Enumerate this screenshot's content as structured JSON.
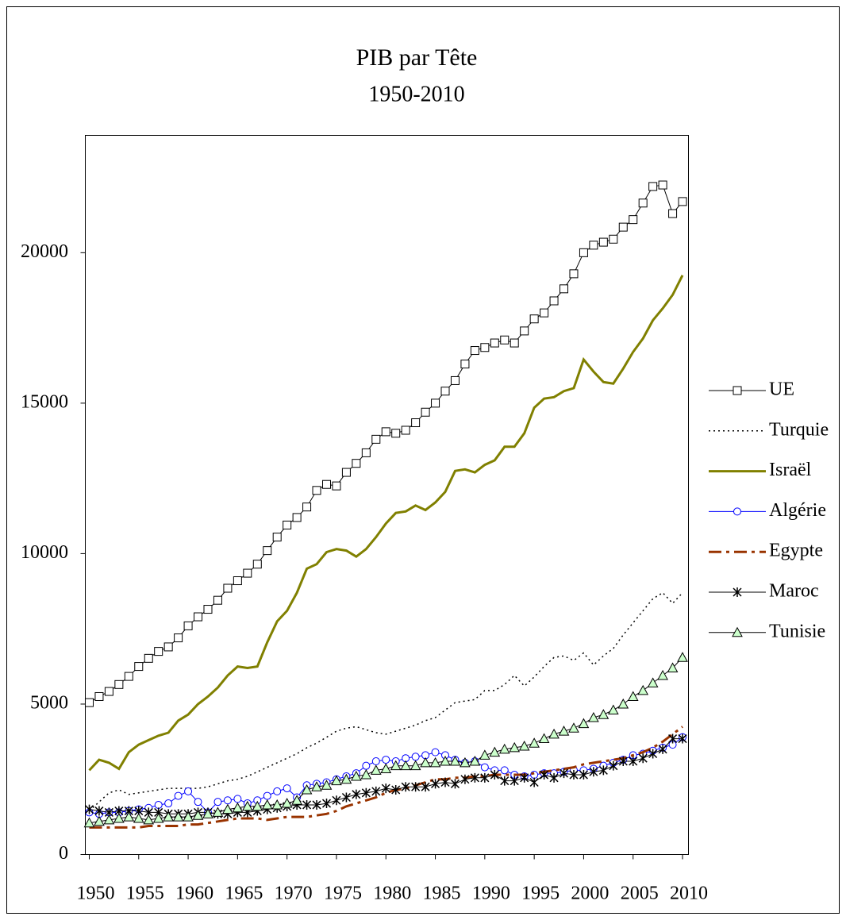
{
  "chart_data": {
    "type": "line",
    "title": "PIB par Tête",
    "subtitle": "1950-2010",
    "x": [
      1950,
      1951,
      1952,
      1953,
      1954,
      1955,
      1956,
      1957,
      1958,
      1959,
      1960,
      1961,
      1962,
      1963,
      1964,
      1965,
      1966,
      1967,
      1968,
      1969,
      1970,
      1971,
      1972,
      1973,
      1974,
      1975,
      1976,
      1977,
      1978,
      1979,
      1980,
      1981,
      1982,
      1983,
      1984,
      1985,
      1986,
      1987,
      1988,
      1989,
      1990,
      1991,
      1992,
      1993,
      1994,
      1995,
      1996,
      1997,
      1998,
      1999,
      2000,
      2001,
      2002,
      2003,
      2004,
      2005,
      2006,
      2007,
      2008,
      2009,
      2010
    ],
    "xlim": [
      1949.6,
      2010.6
    ],
    "xticks": [
      1950,
      1955,
      1960,
      1965,
      1970,
      1975,
      1980,
      1985,
      1990,
      1995,
      2000,
      2005,
      2010
    ],
    "ylim": [
      0,
      23900
    ],
    "yticks": [
      0,
      5000,
      10000,
      15000,
      20000
    ],
    "grid": false,
    "legend_position": "right",
    "series": [
      {
        "name": "UE",
        "color": "#000000",
        "line_style": "solid",
        "line_width": 1,
        "marker": "square",
        "marker_fill": "#ffffff",
        "values": [
          5050,
          5250,
          5420,
          5650,
          5920,
          6250,
          6520,
          6750,
          6900,
          7200,
          7600,
          7900,
          8150,
          8450,
          8850,
          9100,
          9350,
          9650,
          10100,
          10550,
          10950,
          11200,
          11550,
          12100,
          12300,
          12250,
          12700,
          13000,
          13350,
          13800,
          14050,
          14000,
          14100,
          14350,
          14700,
          15000,
          15400,
          15750,
          16300,
          16750,
          16850,
          17000,
          17100,
          17000,
          17400,
          17800,
          18000,
          18400,
          18800,
          19300,
          20000,
          20250,
          20350,
          20450,
          20850,
          21100,
          21650,
          22200,
          22250,
          21300,
          21700
        ]
      },
      {
        "name": "Turquie",
        "color": "#000000",
        "line_style": "dotted",
        "line_width": 1.5,
        "marker": "none",
        "values": [
          1450,
          1750,
          2050,
          2150,
          2000,
          2050,
          2100,
          2150,
          2200,
          2200,
          2200,
          2200,
          2250,
          2350,
          2450,
          2500,
          2600,
          2750,
          2900,
          3050,
          3200,
          3350,
          3550,
          3700,
          3900,
          4100,
          4200,
          4250,
          4150,
          4050,
          4000,
          4100,
          4200,
          4300,
          4450,
          4550,
          4800,
          5050,
          5100,
          5150,
          5450,
          5450,
          5650,
          5950,
          5600,
          5900,
          6250,
          6550,
          6600,
          6450,
          6700,
          6300,
          6600,
          6850,
          7300,
          7700,
          8100,
          8500,
          8700,
          8350,
          8700
        ]
      },
      {
        "name": "Israël",
        "color": "#808000",
        "line_style": "solid",
        "line_width": 3,
        "marker": "none",
        "values": [
          2800,
          3150,
          3050,
          2850,
          3400,
          3650,
          3800,
          3950,
          4050,
          4450,
          4650,
          5000,
          5250,
          5550,
          5950,
          6250,
          6200,
          6250,
          7050,
          7750,
          8100,
          8700,
          9500,
          9650,
          10050,
          10150,
          10100,
          9900,
          10150,
          10550,
          11000,
          11350,
          11400,
          11600,
          11450,
          11700,
          12050,
          12750,
          12800,
          12700,
          12950,
          13100,
          13550,
          13550,
          14000,
          14850,
          15150,
          15200,
          15400,
          15500,
          16450,
          16050,
          15700,
          15650,
          16150,
          16700,
          17150,
          17750,
          18150,
          18600,
          19250
        ]
      },
      {
        "name": "Algérie",
        "color": "#0000ff",
        "line_style": "solid",
        "line_width": 1,
        "marker": "circle",
        "marker_fill": "#ffffff",
        "values": [
          1400,
          1350,
          1400,
          1400,
          1450,
          1500,
          1550,
          1650,
          1700,
          1950,
          2100,
          1750,
          1400,
          1750,
          1800,
          1850,
          1700,
          1800,
          1950,
          2100,
          2200,
          1900,
          2300,
          2350,
          2400,
          2500,
          2600,
          2700,
          2950,
          3100,
          3150,
          3100,
          3200,
          3250,
          3300,
          3400,
          3300,
          3150,
          3050,
          3100,
          2900,
          2800,
          2800,
          2650,
          2600,
          2650,
          2700,
          2700,
          2750,
          2800,
          2800,
          2850,
          2950,
          3050,
          3150,
          3300,
          3350,
          3450,
          3550,
          3650,
          3900
        ]
      },
      {
        "name": "Egypte",
        "color": "#993300",
        "line_style": "dashdot",
        "line_width": 3,
        "marker": "none",
        "values": [
          900,
          900,
          900,
          900,
          900,
          900,
          950,
          950,
          950,
          950,
          1000,
          1000,
          1050,
          1100,
          1150,
          1200,
          1200,
          1200,
          1150,
          1200,
          1250,
          1250,
          1250,
          1300,
          1350,
          1450,
          1600,
          1700,
          1800,
          1900,
          2050,
          2150,
          2200,
          2300,
          2400,
          2500,
          2500,
          2550,
          2550,
          2600,
          2600,
          2650,
          2650,
          2650,
          2650,
          2700,
          2750,
          2800,
          2850,
          2900,
          3000,
          3050,
          3100,
          3150,
          3200,
          3300,
          3400,
          3550,
          3750,
          4000,
          4250
        ]
      },
      {
        "name": "Maroc",
        "color": "#000000",
        "line_style": "solid",
        "line_width": 1,
        "marker": "asterisk",
        "values": [
          1500,
          1450,
          1400,
          1450,
          1450,
          1450,
          1400,
          1400,
          1350,
          1350,
          1350,
          1400,
          1400,
          1350,
          1350,
          1400,
          1400,
          1450,
          1500,
          1550,
          1600,
          1650,
          1650,
          1650,
          1700,
          1800,
          1900,
          2000,
          2050,
          2100,
          2200,
          2150,
          2250,
          2250,
          2250,
          2350,
          2400,
          2350,
          2500,
          2550,
          2550,
          2650,
          2450,
          2450,
          2550,
          2400,
          2650,
          2550,
          2700,
          2650,
          2650,
          2750,
          2800,
          2950,
          3100,
          3100,
          3200,
          3350,
          3500,
          3850,
          3850
        ]
      },
      {
        "name": "Tunisie",
        "color": "#000000",
        "line_style": "solid",
        "line_width": 1,
        "marker": "triangle",
        "marker_fill": "#ccffcc",
        "values": [
          1050,
          1100,
          1150,
          1200,
          1250,
          1200,
          1150,
          1200,
          1250,
          1250,
          1250,
          1300,
          1350,
          1400,
          1500,
          1550,
          1600,
          1600,
          1650,
          1650,
          1700,
          1800,
          2150,
          2250,
          2300,
          2450,
          2500,
          2600,
          2650,
          2800,
          2850,
          2950,
          2950,
          2950,
          3050,
          3050,
          3100,
          3100,
          3050,
          3100,
          3300,
          3400,
          3500,
          3550,
          3600,
          3700,
          3850,
          4000,
          4100,
          4200,
          4350,
          4550,
          4650,
          4800,
          5000,
          5250,
          5450,
          5700,
          5950,
          6200,
          6550
        ]
      }
    ]
  }
}
